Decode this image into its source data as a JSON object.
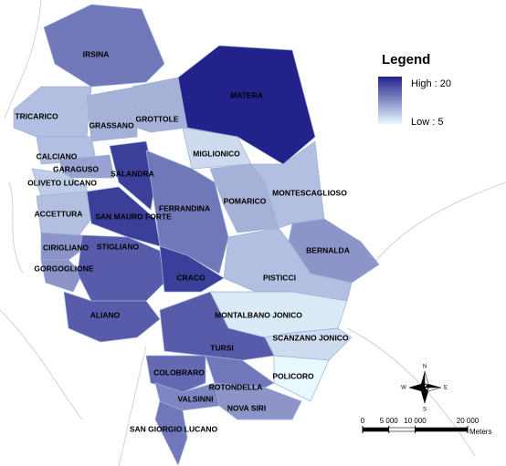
{
  "legend": {
    "title": "Legend",
    "high": {
      "value": 20,
      "label": "High : 20"
    },
    "low": {
      "value": 5,
      "label": "Low : 5"
    },
    "high_color": "#22228a",
    "low_color": "#e8f8ff"
  },
  "regions": [
    {
      "name": "IRSINA",
      "value": 14
    },
    {
      "name": "MATERA",
      "value": 20
    },
    {
      "name": "TRICARICO",
      "value": 9
    },
    {
      "name": "GRASSANO",
      "value": 10
    },
    {
      "name": "GROTTOLE",
      "value": 10
    },
    {
      "name": "MIGLIONICO",
      "value": 7
    },
    {
      "name": "CALCIANO",
      "value": 9
    },
    {
      "name": "GARAGUSO",
      "value": 11
    },
    {
      "name": "SALANDRA",
      "value": 18
    },
    {
      "name": "OLIVETO LUCANO",
      "value": 8
    },
    {
      "name": "ACCETTURA",
      "value": 9
    },
    {
      "name": "SAN MAURO FORTE",
      "value": 18
    },
    {
      "name": "FERRANDINA",
      "value": 14
    },
    {
      "name": "POMARICO",
      "value": 10
    },
    {
      "name": "MONTESCAGLIOSO",
      "value": 9
    },
    {
      "name": "BERNALDA",
      "value": 12
    },
    {
      "name": "PISTICCI",
      "value": 9
    },
    {
      "name": "CIRIGLIANO",
      "value": 12
    },
    {
      "name": "GORGOGLIONE",
      "value": 12
    },
    {
      "name": "STIGLIANO",
      "value": 16
    },
    {
      "name": "CRACO",
      "value": 18
    },
    {
      "name": "ALIANO",
      "value": 16
    },
    {
      "name": "MONTALBANO JONICO",
      "value": 6
    },
    {
      "name": "SCANZANO JONICO",
      "value": 7
    },
    {
      "name": "POLICORO",
      "value": 5
    },
    {
      "name": "TURSI",
      "value": 16
    },
    {
      "name": "COLOBRARO",
      "value": 15
    },
    {
      "name": "ROTONDELLA",
      "value": 14
    },
    {
      "name": "VALSINNI",
      "value": 13
    },
    {
      "name": "NOVA SIRI",
      "value": 12
    },
    {
      "name": "SAN GIORGIO LUCANO",
      "value": 14
    }
  ],
  "scale_bar": {
    "ticks": [
      0,
      {
        "value": 5000,
        "label": "5 000"
      },
      {
        "value": 10000,
        "label": "10 000"
      },
      {
        "value": 20000,
        "label": "20 000"
      }
    ],
    "unit": "Meters"
  },
  "compass": {
    "n": "N",
    "s": "S",
    "e": "E",
    "w": "W"
  }
}
